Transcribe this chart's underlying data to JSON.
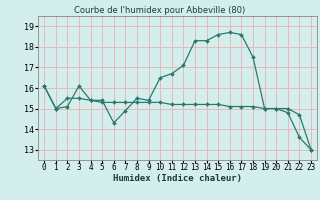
{
  "title": "Courbe de l'humidex pour Abbeville (80)",
  "xlabel": "Humidex (Indice chaleur)",
  "background_color": "#d4eeee",
  "grid_color": "#e8b8b8",
  "line_color": "#2a7a6a",
  "ylim": [
    12.5,
    19.5
  ],
  "xlim": [
    -0.5,
    23.5
  ],
  "yticks": [
    13,
    14,
    15,
    16,
    17,
    18,
    19
  ],
  "xticks": [
    0,
    1,
    2,
    3,
    4,
    5,
    6,
    7,
    8,
    9,
    10,
    11,
    12,
    13,
    14,
    15,
    16,
    17,
    18,
    19,
    20,
    21,
    22,
    23
  ],
  "curve1_x": [
    0,
    1,
    2,
    3,
    4,
    5,
    6,
    7,
    8,
    9,
    10,
    11,
    12,
    13,
    14,
    15,
    16,
    17,
    18,
    19,
    20,
    21,
    22,
    23
  ],
  "curve1_y": [
    16.1,
    15.0,
    15.1,
    16.1,
    15.4,
    15.4,
    14.3,
    14.9,
    15.5,
    15.4,
    16.5,
    16.7,
    17.1,
    18.3,
    18.3,
    18.6,
    18.7,
    18.6,
    17.5,
    15.0,
    15.0,
    14.8,
    13.6,
    13.0
  ],
  "curve2_x": [
    0,
    1,
    2,
    3,
    4,
    5,
    6,
    7,
    8,
    9,
    10,
    11,
    12,
    13,
    14,
    15,
    16,
    17,
    18,
    19,
    20,
    21,
    22,
    23
  ],
  "curve2_y": [
    16.1,
    15.0,
    15.5,
    15.5,
    15.4,
    15.3,
    15.3,
    15.3,
    15.3,
    15.3,
    15.3,
    15.2,
    15.2,
    15.2,
    15.2,
    15.2,
    15.1,
    15.1,
    15.1,
    15.0,
    15.0,
    15.0,
    14.7,
    13.0
  ],
  "title_fontsize": 6,
  "xlabel_fontsize": 6.5,
  "tick_fontsize": 5.5,
  "ytick_fontsize": 6.0
}
